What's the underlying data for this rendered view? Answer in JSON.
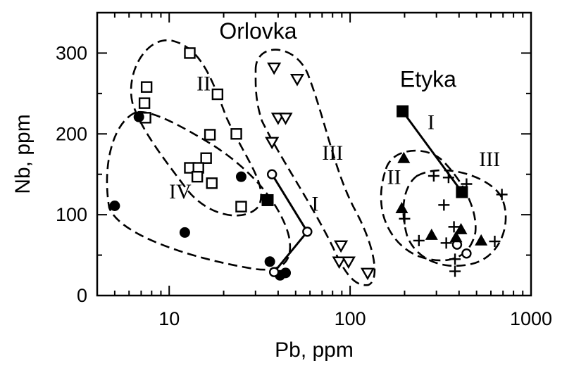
{
  "chart_data": {
    "type": "scatter",
    "title": "",
    "xlabel": "Pb, ppm",
    "ylabel": "Nb, ppm",
    "xscale": "log",
    "xlim": [
      4,
      1000
    ],
    "ylim": [
      0,
      350
    ],
    "xticks": [
      10,
      100,
      1000
    ],
    "xtick_labels": [
      "10",
      "100",
      "1000"
    ],
    "yticks": [
      0,
      100,
      200,
      300
    ],
    "ytick_labels": [
      "0",
      "100",
      "200",
      "300"
    ],
    "grid": false,
    "legend": "none",
    "annotations": [
      {
        "text": "Orlovka",
        "x": 31,
        "y": 318,
        "kind": "region"
      },
      {
        "text": "Etyka",
        "x": 270,
        "y": 258,
        "kind": "region"
      },
      {
        "text": "II",
        "x": 15.5,
        "y": 254,
        "kind": "group"
      },
      {
        "text": "IV",
        "x": 11.5,
        "y": 120,
        "kind": "group"
      },
      {
        "text": "III",
        "x": 80,
        "y": 168,
        "kind": "group"
      },
      {
        "text": "I",
        "x": 64,
        "y": 105,
        "kind": "group"
      },
      {
        "text": "I",
        "x": 280,
        "y": 206,
        "kind": "group"
      },
      {
        "text": "II",
        "x": 175,
        "y": 138,
        "kind": "group"
      },
      {
        "text": "III",
        "x": 590,
        "y": 160,
        "kind": "group"
      }
    ],
    "series": [
      {
        "marker": "open-square",
        "points": [
          [
            13,
            300
          ],
          [
            7.5,
            258
          ],
          [
            7.3,
            238
          ],
          [
            7.4,
            220
          ],
          [
            18.5,
            249
          ],
          [
            16.8,
            199
          ],
          [
            23.5,
            200
          ],
          [
            16,
            170
          ],
          [
            13,
            158
          ],
          [
            14.5,
            158
          ],
          [
            14.3,
            147
          ],
          [
            17.2,
            139
          ],
          [
            25,
            110
          ]
        ]
      },
      {
        "marker": "filled-circle",
        "points": [
          [
            6.8,
            221
          ],
          [
            5,
            111
          ],
          [
            12.2,
            78
          ],
          [
            25,
            147
          ],
          [
            36,
            42
          ],
          [
            41,
            25
          ],
          [
            44,
            28
          ]
        ]
      },
      {
        "marker": "open-down-triangle",
        "points": [
          [
            38,
            282
          ],
          [
            51,
            268
          ],
          [
            40,
            220
          ],
          [
            44,
            220
          ],
          [
            37,
            190
          ],
          [
            89,
            62
          ],
          [
            87,
            42
          ],
          [
            98,
            42
          ],
          [
            125,
            28
          ]
        ]
      },
      {
        "marker": "filled-square",
        "points": [
          [
            35,
            118
          ],
          [
            195,
            228
          ],
          [
            415,
            128
          ]
        ]
      },
      {
        "marker": "open-circle",
        "points": [
          [
            37,
            150
          ],
          [
            58,
            79
          ],
          [
            38,
            29
          ],
          [
            390,
            63
          ],
          [
            440,
            52
          ]
        ]
      },
      {
        "marker": "filled-up-triangle",
        "points": [
          [
            198,
            170
          ],
          [
            193,
            108
          ],
          [
            282,
            75
          ],
          [
            385,
            72
          ],
          [
            410,
            82
          ],
          [
            530,
            68
          ]
        ]
      },
      {
        "marker": "plus",
        "points": [
          [
            290,
            148
          ],
          [
            350,
            146
          ],
          [
            440,
            138
          ],
          [
            690,
            125
          ],
          [
            200,
            95
          ],
          [
            240,
            68
          ],
          [
            330,
            112
          ],
          [
            375,
            85
          ],
          [
            340,
            65
          ],
          [
            630,
            67
          ],
          [
            380,
            30
          ],
          [
            380,
            45
          ]
        ]
      }
    ],
    "lines": [
      {
        "label": "I",
        "points": [
          [
            37,
            150
          ],
          [
            58,
            79
          ],
          [
            38,
            29
          ]
        ]
      },
      {
        "label": "I",
        "points": [
          [
            195,
            228
          ],
          [
            415,
            128
          ]
        ]
      }
    ]
  }
}
